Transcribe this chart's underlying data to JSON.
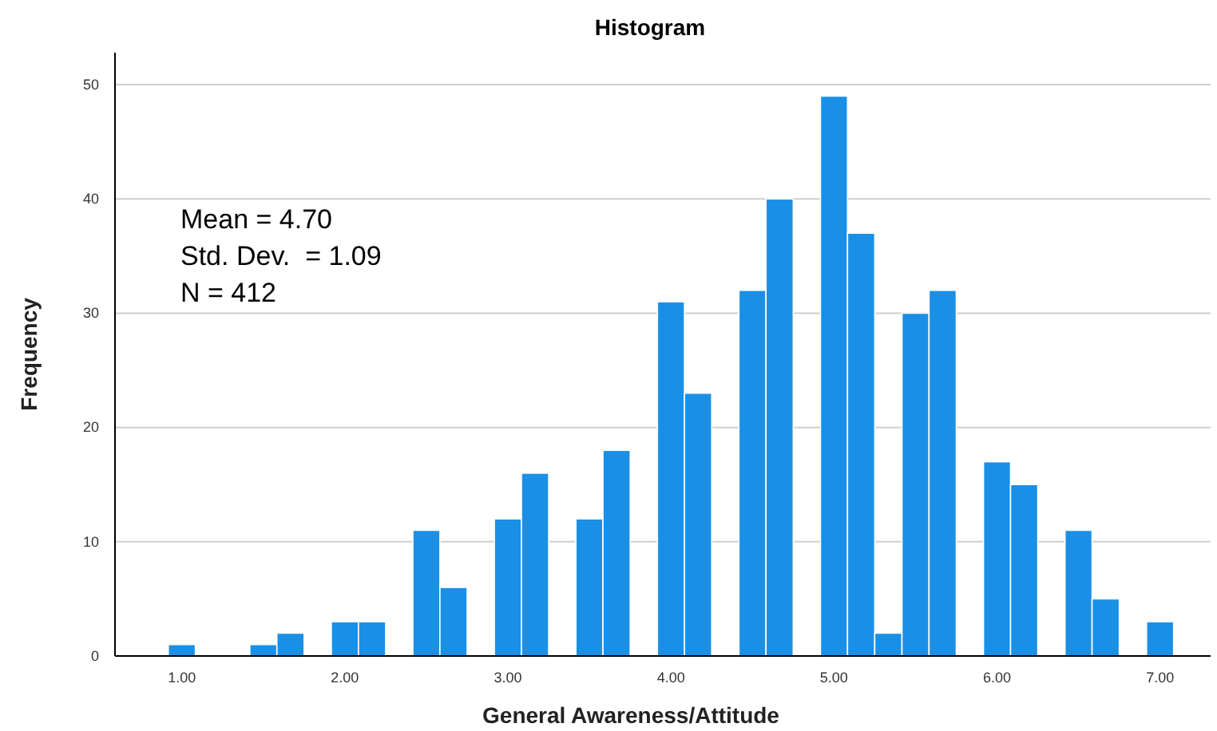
{
  "chart_data": {
    "type": "histogram",
    "title": "Histogram",
    "xlabel": "General Awareness/Attitude",
    "ylabel": "Frequency",
    "annotations": [
      "Mean = 4.70",
      "Std. Dev.  = 1.09",
      "N = 412"
    ],
    "bins": [
      0.917,
      1.083,
      1.25,
      1.417,
      1.583,
      1.75,
      1.917,
      2.083,
      2.25,
      2.417,
      2.583,
      2.75,
      2.917,
      3.083,
      3.25,
      3.417,
      3.583,
      3.75,
      3.917,
      4.083,
      4.25,
      4.417,
      4.583,
      4.75,
      4.917,
      5.083,
      5.25,
      5.417,
      5.583,
      5.75,
      5.917,
      6.083,
      6.25,
      6.417,
      6.583,
      6.75,
      6.917,
      7.083
    ],
    "values": [
      1,
      0,
      0,
      1,
      2,
      0,
      3,
      3,
      0,
      11,
      6,
      0,
      12,
      16,
      0,
      12,
      18,
      0,
      31,
      23,
      0,
      32,
      40,
      0,
      49,
      37,
      2,
      30,
      32,
      0,
      17,
      15,
      0,
      11,
      5,
      0,
      3
    ],
    "color": "#1a8fe6",
    "xlim": [
      0.59,
      7.31
    ],
    "ylim": [
      0,
      52.8
    ],
    "xticks": [
      {
        "value": 1,
        "label": "1.00"
      },
      {
        "value": 2,
        "label": "2.00"
      },
      {
        "value": 3,
        "label": "3.00"
      },
      {
        "value": 4,
        "label": "4.00"
      },
      {
        "value": 5,
        "label": "5.00"
      },
      {
        "value": 6,
        "label": "6.00"
      },
      {
        "value": 7,
        "label": "7.00"
      }
    ],
    "yticks": [
      0,
      10,
      20,
      30,
      40,
      50
    ],
    "grid": "y"
  }
}
